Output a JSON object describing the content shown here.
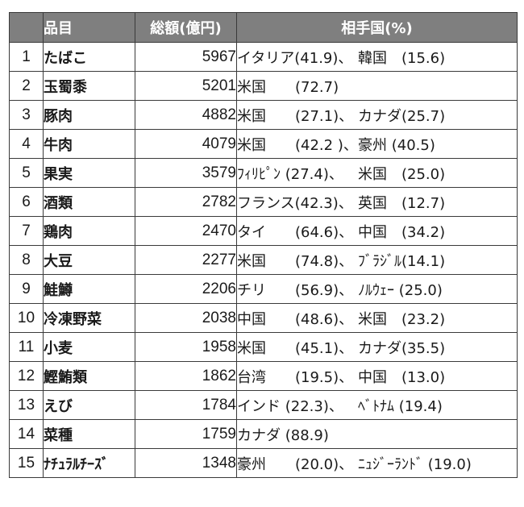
{
  "table": {
    "headers": {
      "rank": "",
      "item": "品目",
      "total": "総額(億円)",
      "partners": "相手国(%)"
    },
    "rows": [
      {
        "rank": "1",
        "item": "たばこ",
        "total": "5967",
        "partner1": "イタリア(41.9)、",
        "partner2": "韓国　(15.6)"
      },
      {
        "rank": "2",
        "item": "玉蜀黍",
        "total": "5201",
        "partner1": "米国　　(72.7)",
        "partner2": ""
      },
      {
        "rank": "3",
        "item": "豚肉",
        "total": "4882",
        "partner1": "米国　　(27.1)、",
        "partner2": "カナダ(25.7)"
      },
      {
        "rank": "4",
        "item": "牛肉",
        "total": "4079",
        "partner1": "米国　　(42.2 )、",
        "partner2": "豪州 (40.5)"
      },
      {
        "rank": "5",
        "item": "果実",
        "total": "3579",
        "partner1": "ﾌｨﾘﾋﾟﾝ (27.4)、",
        "partner2": "米国　(25.0)"
      },
      {
        "rank": "6",
        "item": "酒類",
        "total": "2782",
        "partner1": "フランス(42.3)、",
        "partner2": "英国　(12.7)"
      },
      {
        "rank": "7",
        "item": "鶏肉",
        "total": "2470",
        "partner1": "タイ　　(64.6)、",
        "partner2": "中国　(34.2)"
      },
      {
        "rank": "8",
        "item": "大豆",
        "total": "2277",
        "partner1": "米国　　(74.8)、",
        "partner2": "ﾌﾞﾗｼﾞﾙ(14.1)"
      },
      {
        "rank": "9",
        "item": "鮭鱒",
        "total": "2206",
        "partner1": "チリ　　(56.9)、",
        "partner2": "ﾉﾙｳｪｰ (25.0)"
      },
      {
        "rank": "10",
        "item": "冷凍野菜",
        "total": "2038",
        "partner1": "中国　　(48.6)、",
        "partner2": "米国　(23.2)"
      },
      {
        "rank": "11",
        "item": "小麦",
        "total": "1958",
        "partner1": "米国　　(45.1)、",
        "partner2": "カナダ(35.5)"
      },
      {
        "rank": "12",
        "item": "鰹鮪類",
        "total": "1862",
        "partner1": "台湾　　(19.5)、",
        "partner2": "中国　(13.0)"
      },
      {
        "rank": "13",
        "item": "えび",
        "total": "1784",
        "partner1": "インド (22.3)、",
        "partner2": "ﾍﾞﾄﾅﾑ (19.4)"
      },
      {
        "rank": "14",
        "item": "菜種",
        "total": "1759",
        "partner1": "カナダ (88.9)",
        "partner2": ""
      },
      {
        "rank": "15",
        "item": "ﾅﾁｭﾗﾙﾁｰｽﾞ",
        "total": "1348",
        "partner1": "豪州　　(20.0)、",
        "partner2": "ﾆｭｼﾞｰﾗﾝﾄﾞ (19.0)"
      }
    ]
  },
  "colors": {
    "header_bg": "#7f7f7f",
    "header_text": "#ffffff",
    "border": "#3a3a3a"
  }
}
